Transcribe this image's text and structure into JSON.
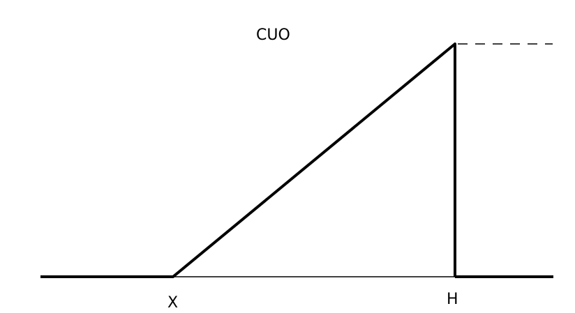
{
  "title": "CUO",
  "labels": {
    "strike": "X",
    "barrier": "H"
  },
  "colors": {
    "line": "#000000",
    "background": "#ffffff"
  }
}
